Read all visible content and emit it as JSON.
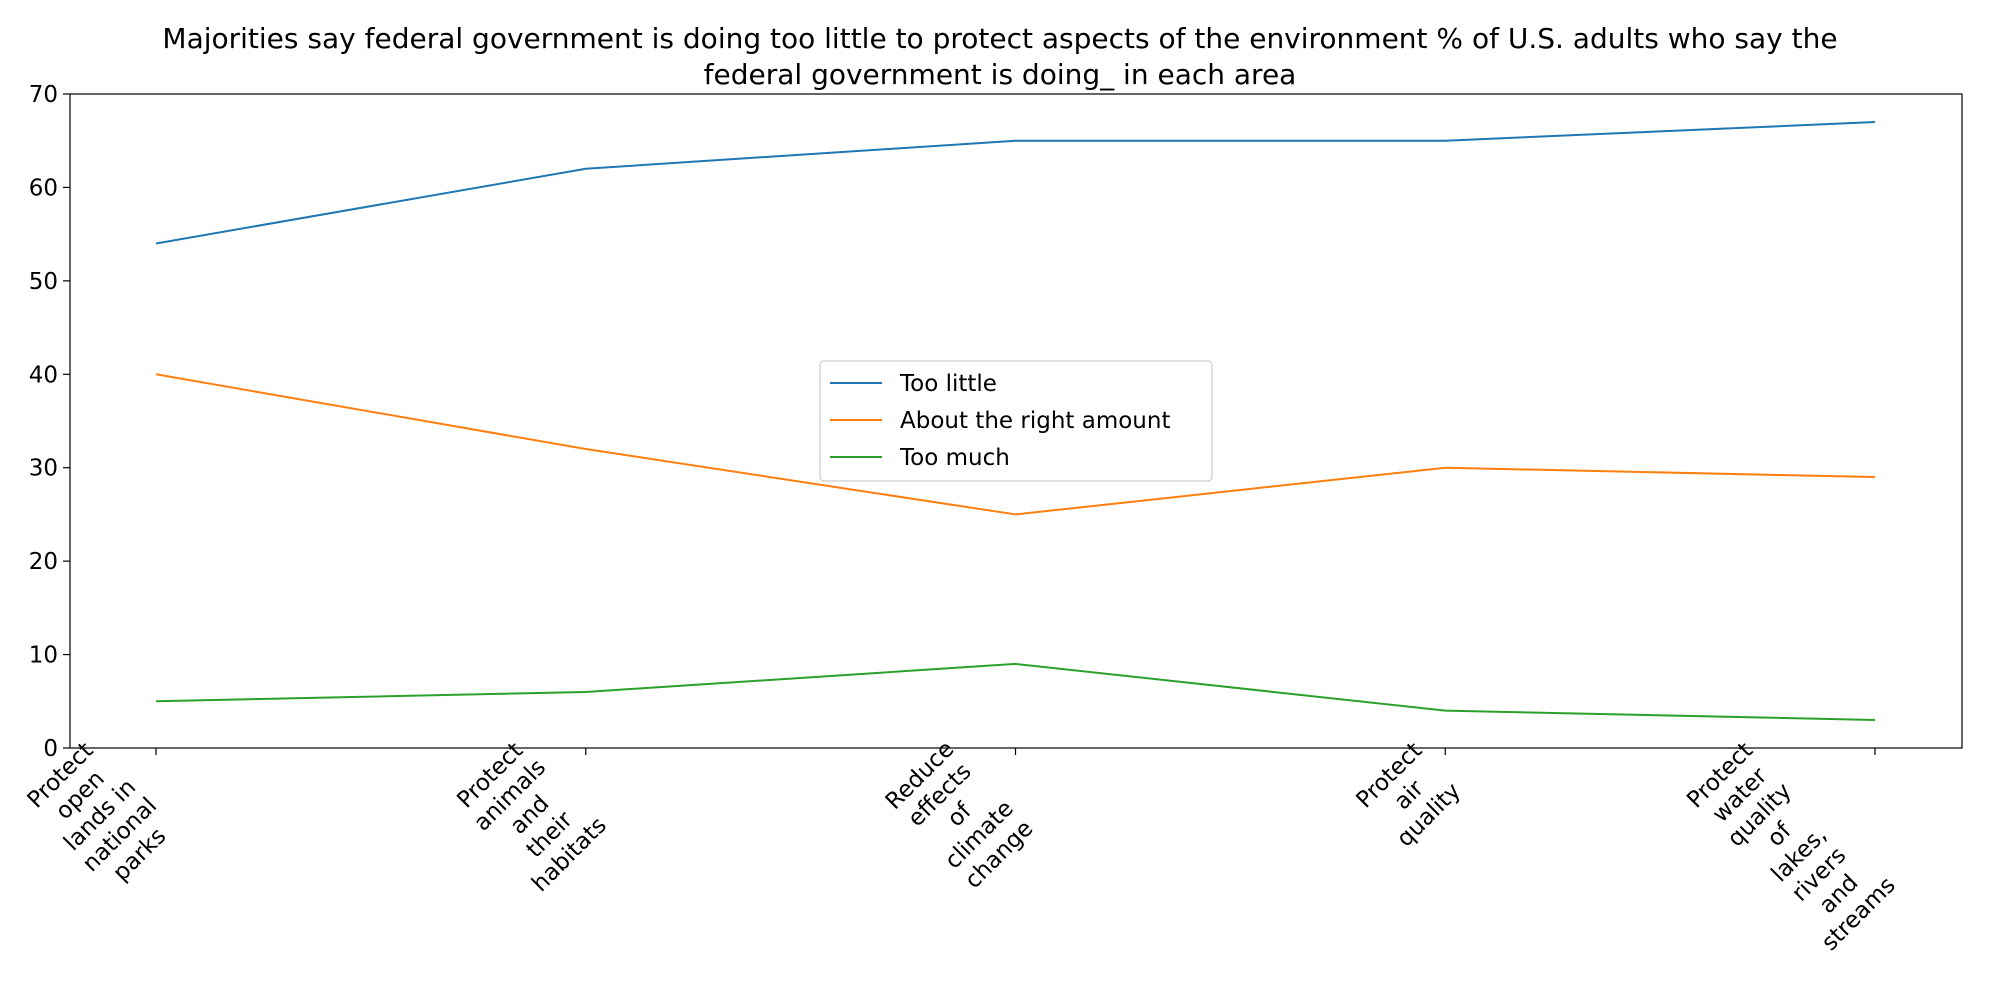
{
  "chart_data": {
    "type": "line",
    "title_lines": [
      "Majorities say federal government is doing too little to protect aspects of the environment % of U.S. adults who say the",
      "federal government is doing_ in each area"
    ],
    "categories": [
      [
        "Protect",
        "open",
        "lands in",
        "national",
        "parks"
      ],
      [
        "Protect",
        "animals",
        "and",
        "their",
        "habitats"
      ],
      [
        "Reduce",
        "effects",
        "of",
        "climate",
        "change"
      ],
      [
        "Protect",
        "air",
        "quality"
      ],
      [
        "Protect",
        "water",
        "quality",
        "of",
        "lakes,",
        "rivers",
        "and",
        "streams"
      ]
    ],
    "series": [
      {
        "name": "Too little",
        "color": "#1f77b4",
        "values": [
          54,
          62,
          65,
          65,
          67
        ]
      },
      {
        "name": "About the right amount",
        "color": "#ff7f0e",
        "values": [
          40,
          32,
          25,
          30,
          29
        ]
      },
      {
        "name": "Too much",
        "color": "#2ca02c",
        "values": [
          5,
          6,
          9,
          4,
          3
        ]
      }
    ],
    "ylim": [
      0,
      70
    ],
    "yticks": [
      0,
      10,
      20,
      30,
      40,
      50,
      60,
      70
    ],
    "grid": false,
    "legend_position": "center"
  }
}
